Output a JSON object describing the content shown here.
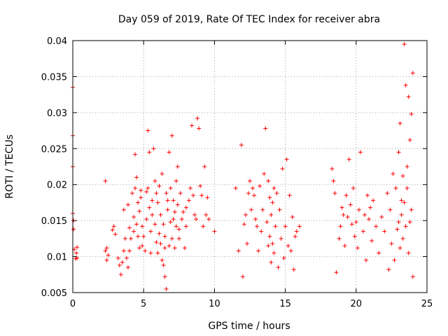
{
  "chart_data": {
    "type": "scatter",
    "title": "Day 059 of 2019, Rate Of TEC Index for receiver abra",
    "xlabel": "GPS time / hours",
    "ylabel": "ROTI / TECUs",
    "xlim": [
      0,
      25
    ],
    "ylim": [
      0.005,
      0.04
    ],
    "xticks": [
      0,
      5,
      10,
      15,
      20,
      25
    ],
    "xtick_labels": [
      "0",
      "5",
      "10",
      "15",
      "20",
      "25"
    ],
    "yticks": [
      0.005,
      0.01,
      0.015,
      0.02,
      0.025,
      0.03,
      0.035,
      0.04
    ],
    "ytick_labels": [
      "0.005",
      "0.01",
      "0.015",
      "0.02",
      "0.025",
      "0.03",
      "0.035",
      "0.04"
    ],
    "grid": true,
    "marker": "+",
    "color": "#ff0000",
    "series": [
      {
        "name": "ROTI",
        "x": [
          0.0,
          0.0,
          0.0,
          0.0,
          0.05,
          0.05,
          0.1,
          0.2,
          0.25,
          0.3,
          0.3,
          2.3,
          2.3,
          2.4,
          2.4,
          2.5,
          2.8,
          2.9,
          3.0,
          3.2,
          3.3,
          3.4,
          3.5,
          3.6,
          3.6,
          3.7,
          3.8,
          3.9,
          3.9,
          4.0,
          4.0,
          4.1,
          4.2,
          4.3,
          4.3,
          4.4,
          4.4,
          4.5,
          4.5,
          4.6,
          4.6,
          4.7,
          4.7,
          4.8,
          4.8,
          4.9,
          4.9,
          5.0,
          5.1,
          5.2,
          5.2,
          5.3,
          5.3,
          5.4,
          5.4,
          5.5,
          5.5,
          5.6,
          5.6,
          5.7,
          5.8,
          5.8,
          5.9,
          5.9,
          6.0,
          6.0,
          6.1,
          6.1,
          6.2,
          6.2,
          6.3,
          6.3,
          6.4,
          6.4,
          6.5,
          6.5,
          6.5,
          6.6,
          6.6,
          6.7,
          6.7,
          6.8,
          6.8,
          6.9,
          6.9,
          7.0,
          7.0,
          7.1,
          7.1,
          7.2,
          7.2,
          7.3,
          7.3,
          7.4,
          7.4,
          7.5,
          7.5,
          7.6,
          7.7,
          7.8,
          7.9,
          8.0,
          8.0,
          8.2,
          8.3,
          8.4,
          8.5,
          8.6,
          8.7,
          8.8,
          8.9,
          9.0,
          9.1,
          9.2,
          9.3,
          9.4,
          9.5,
          9.6,
          10.0,
          11.5,
          11.7,
          11.9,
          12.0,
          12.1,
          12.2,
          12.3,
          12.4,
          12.5,
          12.6,
          12.7,
          12.8,
          12.9,
          13.0,
          13.1,
          13.2,
          13.3,
          13.4,
          13.5,
          13.6,
          13.7,
          13.8,
          13.8,
          13.9,
          13.9,
          14.0,
          14.0,
          14.1,
          14.1,
          14.2,
          14.2,
          14.3,
          14.4,
          14.5,
          14.6,
          14.7,
          14.8,
          14.9,
          15.0,
          15.1,
          15.2,
          15.3,
          15.4,
          15.5,
          15.6,
          15.7,
          15.8,
          16.0,
          18.3,
          18.4,
          18.5,
          18.6,
          18.8,
          18.9,
          19.0,
          19.1,
          19.2,
          19.3,
          19.4,
          19.5,
          19.6,
          19.7,
          19.8,
          19.9,
          20.0,
          20.1,
          20.2,
          20.3,
          20.5,
          20.6,
          20.7,
          20.8,
          20.9,
          21.0,
          21.1,
          21.2,
          21.4,
          21.6,
          21.8,
          22.0,
          22.2,
          22.3,
          22.4,
          22.5,
          22.6,
          22.7,
          22.8,
          22.9,
          23.0,
          23.0,
          23.1,
          23.1,
          23.2,
          23.2,
          23.3,
          23.3,
          23.4,
          23.4,
          23.5,
          23.5,
          23.6,
          23.6,
          23.7,
          23.7,
          23.8,
          23.8,
          23.9,
          23.9,
          24.0,
          24.0
        ],
        "y": [
          0.0335,
          0.0268,
          0.0225,
          0.016,
          0.015,
          0.0138,
          0.011,
          0.0097,
          0.0105,
          0.0113,
          0.0098,
          0.0205,
          0.0108,
          0.0095,
          0.0112,
          0.0102,
          0.0137,
          0.0142,
          0.0131,
          0.0098,
          0.0088,
          0.0075,
          0.0092,
          0.0165,
          0.0108,
          0.0125,
          0.0098,
          0.0085,
          0.0172,
          0.014,
          0.0108,
          0.0125,
          0.0188,
          0.0155,
          0.0135,
          0.0242,
          0.0195,
          0.021,
          0.0145,
          0.0175,
          0.0128,
          0.0163,
          0.0112,
          0.0192,
          0.0182,
          0.0142,
          0.0115,
          0.0128,
          0.0108,
          0.019,
          0.0152,
          0.0275,
          0.0195,
          0.0245,
          0.0168,
          0.0135,
          0.0105,
          0.0178,
          0.0158,
          0.025,
          0.0145,
          0.0205,
          0.012,
          0.0188,
          0.0105,
          0.0175,
          0.0132,
          0.0198,
          0.0118,
          0.0158,
          0.0095,
          0.0215,
          0.0088,
          0.0145,
          0.0112,
          0.0072,
          0.0128,
          0.0188,
          0.0055,
          0.0178,
          0.0165,
          0.0245,
          0.0115,
          0.0195,
          0.0148,
          0.0268,
          0.0125,
          0.0178,
          0.0152,
          0.0112,
          0.0162,
          0.0142,
          0.0205,
          0.0225,
          0.0172,
          0.0125,
          0.0138,
          0.0188,
          0.0152,
          0.0162,
          0.0112,
          0.0142,
          0.0168,
          0.0178,
          0.0195,
          0.0282,
          0.0185,
          0.0158,
          0.0152,
          0.0292,
          0.0278,
          0.0198,
          0.0185,
          0.0142,
          0.0225,
          0.0158,
          0.0182,
          0.0152,
          0.0135,
          0.0195,
          0.0108,
          0.0255,
          0.0072,
          0.0145,
          0.0158,
          0.0118,
          0.0188,
          0.0205,
          0.0165,
          0.0195,
          0.0185,
          0.0152,
          0.0142,
          0.0108,
          0.0198,
          0.0135,
          0.0165,
          0.0215,
          0.0278,
          0.0148,
          0.0205,
          0.0115,
          0.0182,
          0.0128,
          0.0158,
          0.0092,
          0.0175,
          0.0118,
          0.0195,
          0.0105,
          0.0142,
          0.0188,
          0.0085,
          0.0165,
          0.0125,
          0.0222,
          0.0098,
          0.0142,
          0.0235,
          0.0115,
          0.0185,
          0.0108,
          0.0155,
          0.0082,
          0.0128,
          0.0135,
          0.0142,
          0.0222,
          0.0205,
          0.0188,
          0.0078,
          0.0125,
          0.0142,
          0.0168,
          0.0158,
          0.0115,
          0.0185,
          0.0155,
          0.0235,
          0.0172,
          0.0145,
          0.0195,
          0.0128,
          0.0148,
          0.0112,
          0.0165,
          0.0245,
          0.0135,
          0.0158,
          0.0095,
          0.0185,
          0.0152,
          0.0168,
          0.0122,
          0.0178,
          0.0142,
          0.0105,
          0.0155,
          0.0135,
          0.0188,
          0.0082,
          0.0165,
          0.0118,
          0.0215,
          0.0095,
          0.0195,
          0.0138,
          0.0148,
          0.0245,
          0.0112,
          0.0285,
          0.0178,
          0.0158,
          0.0125,
          0.0212,
          0.0175,
          0.0395,
          0.0142,
          0.0338,
          0.0195,
          0.0225,
          0.0105,
          0.0322,
          0.0148,
          0.0262,
          0.0165,
          0.0298,
          0.0072,
          0.0355
        ]
      }
    ]
  }
}
